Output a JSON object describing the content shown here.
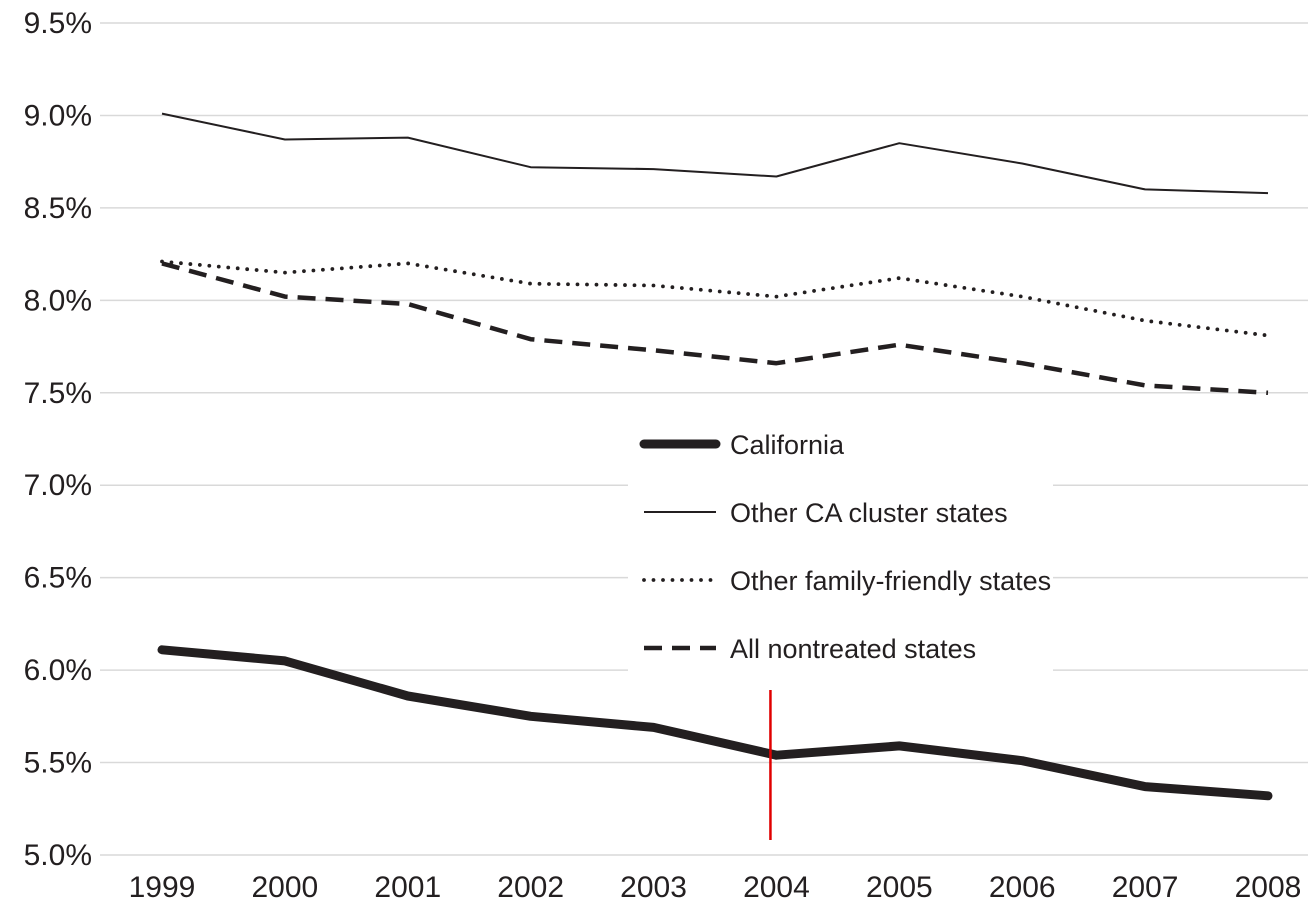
{
  "chart_data": {
    "type": "line",
    "title": "",
    "xlabel": "",
    "ylabel": "",
    "x": [
      1999,
      2000,
      2001,
      2002,
      2003,
      2004,
      2005,
      2006,
      2007,
      2008
    ],
    "x_tick_labels": [
      "1999",
      "2000",
      "2001",
      "2002",
      "2003",
      "2004",
      "2005",
      "2006",
      "2007",
      "2008"
    ],
    "ylim": [
      5.0,
      9.5
    ],
    "y_ticks": [
      5.0,
      5.5,
      6.0,
      6.5,
      7.0,
      7.5,
      8.0,
      8.5,
      9.0,
      9.5
    ],
    "y_tick_labels": [
      "5.0%",
      "5.5%",
      "6.0%",
      "6.5%",
      "7.0%",
      "7.5%",
      "8.0%",
      "8.5%",
      "9.0%",
      "9.5%"
    ],
    "grid": "horizontal",
    "legend_position": "center-right",
    "marker_line": {
      "x": 2004,
      "color": "#e00000"
    },
    "series": [
      {
        "name": "California",
        "style": "thick",
        "color": "#231f20",
        "values": [
          6.11,
          6.05,
          5.86,
          5.75,
          5.69,
          5.54,
          5.59,
          5.51,
          5.37,
          5.32
        ]
      },
      {
        "name": "Other CA cluster states",
        "style": "thin",
        "color": "#231f20",
        "values": [
          9.01,
          8.87,
          8.88,
          8.72,
          8.71,
          8.67,
          8.85,
          8.74,
          8.6,
          8.58
        ]
      },
      {
        "name": "Other family-friendly states",
        "style": "dotted",
        "color": "#231f20",
        "values": [
          8.21,
          8.15,
          8.2,
          8.09,
          8.08,
          8.02,
          8.12,
          8.02,
          7.89,
          7.81
        ]
      },
      {
        "name": "All nontreated states",
        "style": "dashed",
        "color": "#231f20",
        "values": [
          8.2,
          8.02,
          7.98,
          7.79,
          7.73,
          7.66,
          7.76,
          7.66,
          7.54,
          7.5
        ]
      }
    ]
  }
}
